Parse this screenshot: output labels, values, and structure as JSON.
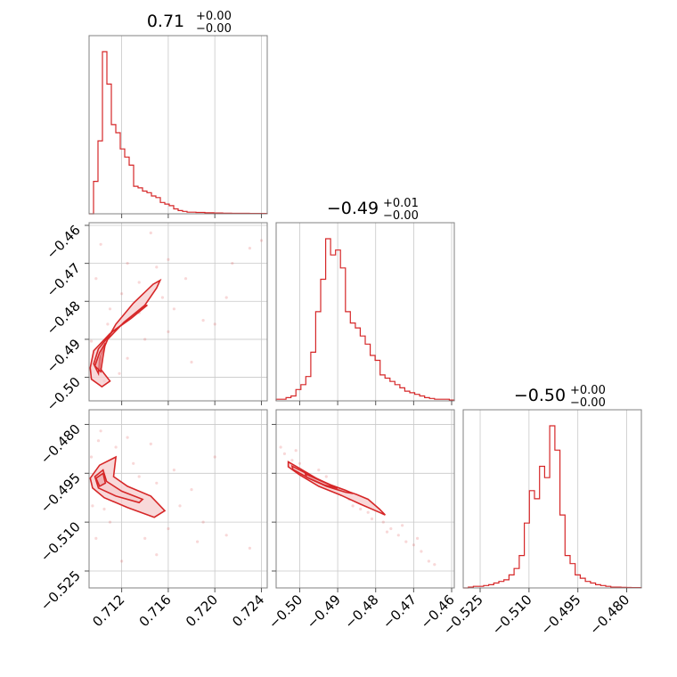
{
  "colors": {
    "series": "#d62728",
    "fill": "#f6cccd",
    "grid": "#c8c8c8",
    "frame": "#808080"
  },
  "chart_data": {
    "type": "corner",
    "grid": true,
    "parameters": [
      {
        "title": {
          "median": "0.71",
          "plus": "+0.00",
          "minus": "−0.00"
        },
        "range": [
          0.7092,
          0.7245
        ],
        "ticks": [
          {
            "v": 0.712,
            "label": "0.712"
          },
          {
            "v": 0.716,
            "label": "0.716"
          },
          {
            "v": 0.72,
            "label": "0.720"
          },
          {
            "v": 0.724,
            "label": "0.724"
          }
        ],
        "hist": [
          0,
          0.2,
          0.45,
          1.0,
          0.8,
          0.55,
          0.5,
          0.4,
          0.35,
          0.3,
          0.17,
          0.16,
          0.14,
          0.13,
          0.11,
          0.1,
          0.07,
          0.06,
          0.05,
          0.03,
          0.02,
          0.015,
          0.01,
          0.01,
          0.008,
          0.008,
          0.006,
          0.006,
          0.005,
          0.005,
          0.004,
          0.004,
          0.003,
          0.003,
          0.003,
          0.003,
          0.002,
          0.002,
          0.002,
          0.002
        ]
      },
      {
        "title": {
          "median": "−0.49",
          "plus": "+0.01",
          "minus": "−0.00"
        },
        "range": [
          -0.5062,
          -0.4593
        ],
        "ticks": [
          {
            "v": -0.5,
            "label": "−0.50"
          },
          {
            "v": -0.49,
            "label": "−0.49"
          },
          {
            "v": -0.48,
            "label": "−0.48"
          },
          {
            "v": -0.47,
            "label": "−0.47"
          },
          {
            "v": -0.46,
            "label": "−0.46"
          }
        ],
        "hist": [
          0.01,
          0.01,
          0.02,
          0.03,
          0.07,
          0.1,
          0.15,
          0.3,
          0.55,
          0.75,
          1.0,
          0.9,
          0.93,
          0.82,
          0.55,
          0.48,
          0.45,
          0.4,
          0.35,
          0.28,
          0.25,
          0.16,
          0.14,
          0.12,
          0.1,
          0.08,
          0.06,
          0.05,
          0.04,
          0.03,
          0.02,
          0.015,
          0.01,
          0.01,
          0.01,
          0.005
        ]
      },
      {
        "title": {
          "median": "−0.50",
          "plus": "+0.00",
          "minus": "−0.00"
        },
        "range": [
          -0.5302,
          -0.4755
        ],
        "ticks": [
          {
            "v": -0.525,
            "label": "−0.525"
          },
          {
            "v": -0.51,
            "label": "−0.510"
          },
          {
            "v": -0.495,
            "label": "−0.495"
          },
          {
            "v": -0.48,
            "label": "−0.480"
          }
        ],
        "hist": [
          0,
          0.005,
          0.01,
          0.01,
          0.015,
          0.02,
          0.03,
          0.04,
          0.05,
          0.08,
          0.12,
          0.2,
          0.4,
          0.6,
          0.55,
          0.75,
          0.68,
          1.0,
          0.85,
          0.45,
          0.2,
          0.15,
          0.08,
          0.06,
          0.04,
          0.03,
          0.02,
          0.015,
          0.01,
          0.005,
          0.005,
          0.004,
          0.003,
          0.002,
          0.002
        ]
      }
    ],
    "pairs": [
      {
        "x": 0,
        "y": 1,
        "contours": [
          [
            [
              0.7093,
              -0.4975
            ],
            [
              0.7096,
              -0.493
            ],
            [
              0.711,
              -0.4885
            ],
            [
              0.7125,
              -0.485
            ],
            [
              0.714,
              -0.481
            ],
            [
              0.715,
              -0.4765
            ],
            [
              0.7153,
              -0.4745
            ],
            [
              0.7147,
              -0.4755
            ],
            [
              0.713,
              -0.4805
            ],
            [
              0.7115,
              -0.486
            ],
            [
              0.7103,
              -0.4925
            ],
            [
              0.7101,
              -0.4975
            ],
            [
              0.711,
              -0.501
            ],
            [
              0.7103,
              -0.5025
            ],
            [
              0.7094,
              -0.5005
            ]
          ],
          [
            [
              0.7096,
              -0.4965
            ],
            [
              0.71,
              -0.4925
            ],
            [
              0.7112,
              -0.488
            ],
            [
              0.7128,
              -0.4845
            ],
            [
              0.7142,
              -0.481
            ],
            [
              0.7138,
              -0.4815
            ],
            [
              0.7122,
              -0.4855
            ],
            [
              0.7108,
              -0.49
            ],
            [
              0.7101,
              -0.495
            ],
            [
              0.71,
              -0.499
            ]
          ]
        ],
        "contour_cores": [
          [
            [
              0.7097,
              -0.497
            ],
            [
              0.7101,
              -0.4935
            ],
            [
              0.7106,
              -0.491
            ],
            [
              0.7104,
              -0.4945
            ],
            [
              0.7102,
              -0.4985
            ]
          ]
        ],
        "scatter": [
          [
            0.7094,
            -0.4905
          ],
          [
            0.71,
            -0.495
          ],
          [
            0.711,
            -0.482
          ],
          [
            0.712,
            -0.478
          ],
          [
            0.7135,
            -0.475
          ],
          [
            0.715,
            -0.471
          ],
          [
            0.716,
            -0.469
          ],
          [
            0.7175,
            -0.474
          ],
          [
            0.719,
            -0.485
          ],
          [
            0.721,
            -0.479
          ],
          [
            0.723,
            -0.466
          ],
          [
            0.724,
            -0.464
          ],
          [
            0.7105,
            -0.501
          ],
          [
            0.7125,
            -0.495
          ],
          [
            0.714,
            -0.49
          ],
          [
            0.716,
            -0.488
          ],
          [
            0.718,
            -0.496
          ],
          [
            0.72,
            -0.486
          ],
          [
            0.7125,
            -0.47
          ],
          [
            0.7098,
            -0.474
          ],
          [
            0.7102,
            -0.465
          ],
          [
            0.7145,
            -0.462
          ],
          [
            0.7165,
            -0.482
          ],
          [
            0.7215,
            -0.47
          ],
          [
            0.7108,
            -0.486
          ],
          [
            0.7118,
            -0.499
          ],
          [
            0.7135,
            -0.483
          ],
          [
            0.7155,
            -0.479
          ]
        ]
      },
      {
        "x": 0,
        "y": 2,
        "contours": [
          [
            [
              0.7093,
              -0.4965
            ],
            [
              0.7101,
              -0.4925
            ],
            [
              0.7115,
              -0.49
            ],
            [
              0.7113,
              -0.496
            ],
            [
              0.7125,
              -0.499
            ],
            [
              0.7145,
              -0.502
            ],
            [
              0.7157,
              -0.5065
            ],
            [
              0.7148,
              -0.5085
            ],
            [
              0.7125,
              -0.5055
            ],
            [
              0.7105,
              -0.5025
            ],
            [
              0.7095,
              -0.4995
            ]
          ],
          [
            [
              0.7097,
              -0.496
            ],
            [
              0.7104,
              -0.494
            ],
            [
              0.7107,
              -0.4975
            ],
            [
              0.712,
              -0.5005
            ],
            [
              0.7138,
              -0.503
            ],
            [
              0.7135,
              -0.504
            ],
            [
              0.7115,
              -0.502
            ],
            [
              0.71,
              -0.4995
            ]
          ]
        ],
        "contour_cores": [
          [
            [
              0.7098,
              -0.4965
            ],
            [
              0.7104,
              -0.495
            ],
            [
              0.7106,
              -0.498
            ],
            [
              0.7101,
              -0.499
            ]
          ]
        ],
        "scatter": [
          [
            0.7094,
            -0.49
          ],
          [
            0.71,
            -0.485
          ],
          [
            0.7115,
            -0.487
          ],
          [
            0.713,
            -0.492
          ],
          [
            0.715,
            -0.498
          ],
          [
            0.717,
            -0.505
          ],
          [
            0.719,
            -0.51
          ],
          [
            0.721,
            -0.514
          ],
          [
            0.723,
            -0.518
          ],
          [
            0.711,
            -0.51
          ],
          [
            0.7098,
            -0.515
          ],
          [
            0.712,
            -0.522
          ],
          [
            0.715,
            -0.52
          ],
          [
            0.718,
            -0.5
          ],
          [
            0.72,
            -0.49
          ],
          [
            0.7125,
            -0.484
          ],
          [
            0.714,
            -0.515
          ],
          [
            0.716,
            -0.512
          ],
          [
            0.7105,
            -0.506
          ],
          [
            0.7135,
            -0.496
          ],
          [
            0.7165,
            -0.494
          ],
          [
            0.7095,
            -0.505
          ],
          [
            0.7102,
            -0.482
          ],
          [
            0.7145,
            -0.486
          ],
          [
            0.7185,
            -0.516
          ]
        ]
      },
      {
        "x": 1,
        "y": 2,
        "contours": [
          [
            [
              -0.503,
              -0.4915
            ],
            [
              -0.5,
              -0.4935
            ],
            [
              -0.495,
              -0.497
            ],
            [
              -0.49,
              -0.4995
            ],
            [
              -0.485,
              -0.5015
            ],
            [
              -0.482,
              -0.503
            ],
            [
              -0.479,
              -0.506
            ],
            [
              -0.4775,
              -0.5078
            ],
            [
              -0.479,
              -0.507
            ],
            [
              -0.484,
              -0.5045
            ],
            [
              -0.489,
              -0.5018
            ],
            [
              -0.495,
              -0.499
            ],
            [
              -0.5,
              -0.4955
            ],
            [
              -0.503,
              -0.493
            ]
          ],
          [
            [
              -0.502,
              -0.4928
            ],
            [
              -0.497,
              -0.4958
            ],
            [
              -0.492,
              -0.4985
            ],
            [
              -0.488,
              -0.5002
            ],
            [
              -0.486,
              -0.5012
            ],
            [
              -0.488,
              -0.5008
            ],
            [
              -0.493,
              -0.499
            ],
            [
              -0.4975,
              -0.4966
            ],
            [
              -0.5018,
              -0.4938
            ]
          ]
        ],
        "contour_cores": [
          [
            [
              -0.4985,
              -0.4952
            ],
            [
              -0.4935,
              -0.4978
            ],
            [
              -0.49,
              -0.4996
            ],
            [
              -0.4935,
              -0.4986
            ],
            [
              -0.4982,
              -0.4962
            ]
          ]
        ],
        "scatter": [
          [
            -0.505,
            -0.487
          ],
          [
            -0.504,
            -0.489
          ],
          [
            -0.502,
            -0.491
          ],
          [
            -0.5,
            -0.492
          ],
          [
            -0.498,
            -0.495
          ],
          [
            -0.496,
            -0.497
          ],
          [
            -0.493,
            -0.496
          ],
          [
            -0.49,
            -0.501
          ],
          [
            -0.487,
            -0.503
          ],
          [
            -0.484,
            -0.506
          ],
          [
            -0.481,
            -0.509
          ],
          [
            -0.478,
            -0.51
          ],
          [
            -0.476,
            -0.512
          ],
          [
            -0.474,
            -0.514
          ],
          [
            -0.472,
            -0.516
          ],
          [
            -0.47,
            -0.517
          ],
          [
            -0.468,
            -0.519
          ],
          [
            -0.466,
            -0.522
          ],
          [
            -0.4645,
            -0.523
          ],
          [
            -0.469,
            -0.515
          ],
          [
            -0.473,
            -0.511
          ],
          [
            -0.477,
            -0.513
          ],
          [
            -0.482,
            -0.507
          ],
          [
            -0.486,
            -0.505
          ],
          [
            -0.495,
            -0.494
          ],
          [
            -0.501,
            -0.488
          ]
        ]
      }
    ]
  }
}
